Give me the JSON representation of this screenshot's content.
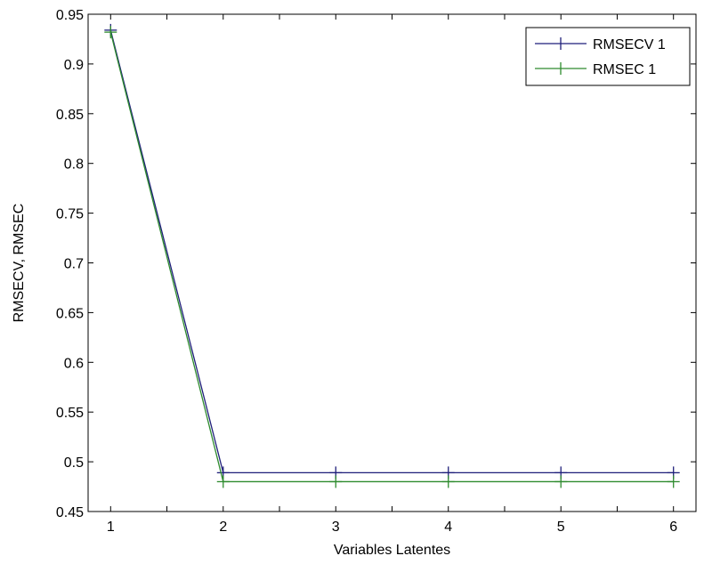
{
  "chart_data": {
    "type": "line",
    "title": "",
    "xlabel": "Variables Latentes",
    "ylabel": "RMSECV, RMSEC",
    "x": [
      1,
      2,
      3,
      4,
      5,
      6
    ],
    "xlim": [
      0.8,
      6.2
    ],
    "ylim": [
      0.45,
      0.95
    ],
    "xticks": [
      "1",
      "2",
      "3",
      "4",
      "5",
      "6"
    ],
    "yticks": [
      "0.45",
      "0.5",
      "0.55",
      "0.6",
      "0.65",
      "0.7",
      "0.75",
      "0.8",
      "0.85",
      "0.9",
      "0.95"
    ],
    "grid": false,
    "legend_position": "top-right",
    "series": [
      {
        "name": "RMSECV 1",
        "values": [
          0.934,
          0.489,
          0.489,
          0.489,
          0.489,
          0.489
        ],
        "color": "#1f1f7a",
        "marker": "plus"
      },
      {
        "name": "RMSEC 1",
        "values": [
          0.932,
          0.48,
          0.48,
          0.48,
          0.48,
          0.48
        ],
        "color": "#2e8b2e",
        "marker": "plus"
      }
    ]
  }
}
